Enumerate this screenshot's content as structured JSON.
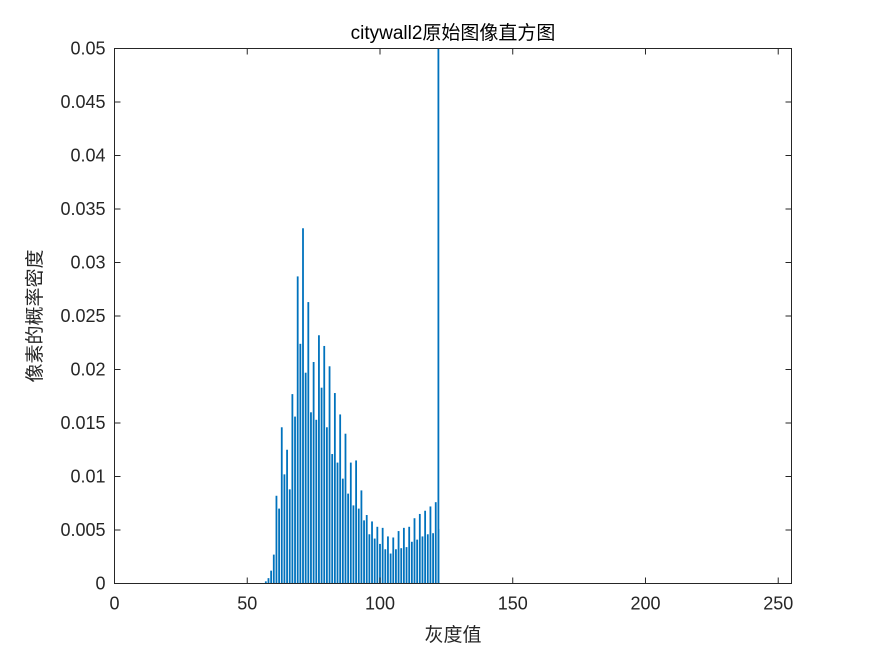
{
  "chart_data": {
    "type": "bar",
    "title": "citywall2原始图像直方图",
    "xlabel": "灰度值",
    "ylabel": "像素的概率密度",
    "xlim": [
      0,
      255
    ],
    "ylim": [
      0,
      0.05
    ],
    "xticks": [
      0,
      50,
      100,
      150,
      200,
      250
    ],
    "yticks": [
      0,
      0.005,
      0.01,
      0.015,
      0.02,
      0.025,
      0.03,
      0.035,
      0.04,
      0.045,
      0.05
    ],
    "ytick_labels": [
      "0",
      "0.005",
      "0.01",
      "0.015",
      "0.02",
      "0.025",
      "0.03",
      "0.035",
      "0.04",
      "0.045",
      "0.05"
    ],
    "bar_color": "#0072BD",
    "grid": false,
    "series": [
      {
        "x": [
          57,
          58,
          59,
          60,
          61,
          62,
          63,
          64,
          65,
          66,
          67,
          68,
          69,
          70,
          71,
          72,
          73,
          74,
          75,
          76,
          77,
          78,
          79,
          80,
          81,
          82,
          83,
          84,
          85,
          86,
          87,
          88,
          89,
          90,
          91,
          92,
          93,
          94,
          95,
          96,
          97,
          98,
          99,
          100,
          101,
          102,
          103,
          104,
          105,
          106,
          107,
          108,
          109,
          110,
          111,
          112,
          113,
          114,
          115,
          116,
          117,
          118,
          119,
          120,
          121,
          122
        ],
        "values": [
          0.0002,
          0.0005,
          0.0012,
          0.0027,
          0.0082,
          0.007,
          0.0146,
          0.0102,
          0.0125,
          0.0088,
          0.0177,
          0.0156,
          0.0287,
          0.0224,
          0.0332,
          0.0197,
          0.0263,
          0.016,
          0.0207,
          0.0153,
          0.0232,
          0.0183,
          0.0222,
          0.0146,
          0.0203,
          0.0121,
          0.0178,
          0.0113,
          0.0158,
          0.0098,
          0.014,
          0.0084,
          0.0113,
          0.0073,
          0.0115,
          0.007,
          0.0087,
          0.0059,
          0.0064,
          0.0046,
          0.0058,
          0.0042,
          0.0053,
          0.0037,
          0.0052,
          0.0032,
          0.0044,
          0.0028,
          0.0043,
          0.0032,
          0.0049,
          0.0033,
          0.0052,
          0.0034,
          0.0053,
          0.0039,
          0.0061,
          0.0041,
          0.0065,
          0.0044,
          0.0068,
          0.0046,
          0.0072,
          0.0047,
          0.0076,
          0.0051
        ]
      },
      {
        "x": [
          122
        ],
        "values": [
          0.0507
        ],
        "note_clipped": true
      }
    ]
  }
}
